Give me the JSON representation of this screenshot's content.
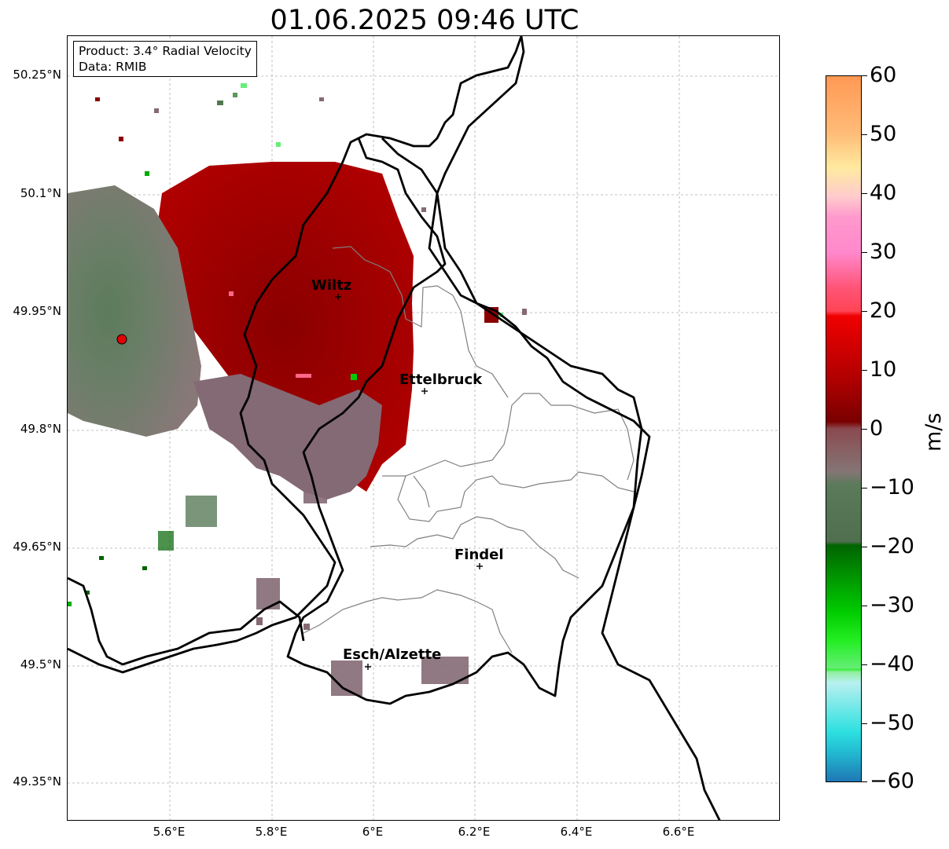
{
  "title": "01.06.2025 09:46 UTC",
  "info": {
    "product": "Product: 3.4° Radial Velocity",
    "data": "Data: RMIB"
  },
  "map": {
    "lat_ticks": [
      "50.25°N",
      "50.1°N",
      "49.95°N",
      "49.8°N",
      "49.65°N",
      "49.5°N",
      "49.35°N"
    ],
    "lon_ticks": [
      "5.6°E",
      "5.8°E",
      "6°E",
      "6.2°E",
      "6.4°E",
      "6.6°E"
    ],
    "cities": [
      {
        "name": "Wiltz"
      },
      {
        "name": "Ettelbruck"
      },
      {
        "name": "Findel"
      },
      {
        "name": "Esch/Alzette"
      }
    ],
    "radar_marker_color": "#e00000"
  },
  "colorbar": {
    "unit": "m/s",
    "ticks": [
      "60",
      "50",
      "40",
      "30",
      "20",
      "10",
      "0",
      "−10",
      "−20",
      "−30",
      "−40",
      "−50",
      "−60"
    ],
    "range": [
      -60,
      60
    ],
    "colors": {
      "very_negative": "#1f77b4",
      "cyan": "#2de0e0",
      "light_cyan": "#b8f0f0",
      "light_green": "#8fef9f",
      "green": "#00dd00",
      "dark_green": "#006400",
      "grey_green": "#5a7a5a",
      "grey": "#857575",
      "dark_red": "#7a0000",
      "red": "#f00000",
      "pink": "#ff8cc8",
      "light_yellow": "#ffeaa0",
      "orange": "#ff9955"
    }
  }
}
